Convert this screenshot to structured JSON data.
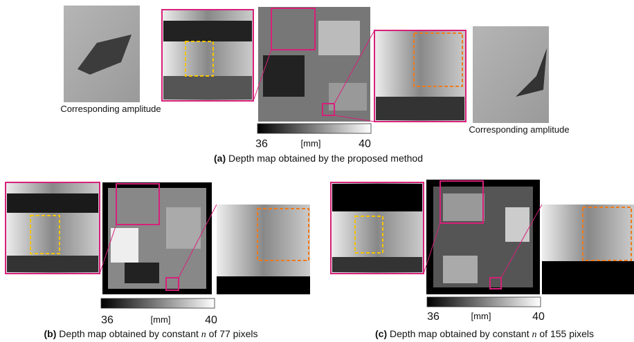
{
  "panels": [
    {
      "label": "(a)",
      "caption": "Depth map obtained by the proposed method",
      "amplitude_labels": [
        "Corresponding amplitude",
        "Corresponding amplitude"
      ],
      "colorbar": {
        "min": 36,
        "unit": "[mm]",
        "max": 40
      }
    },
    {
      "label": "(b)",
      "caption_start": "Depth map obtained by constant",
      "variable": "n",
      "caption_end": "of 77 pixels",
      "colorbar": {
        "min": 36,
        "unit": "[mm]",
        "max": 40
      }
    },
    {
      "label": "(c)",
      "caption_start": "Depth map obtained by constant",
      "variable": "n",
      "caption_end": "of 155 pixels",
      "colorbar": {
        "min": 36,
        "unit": "[mm]",
        "max": 40
      }
    }
  ]
}
